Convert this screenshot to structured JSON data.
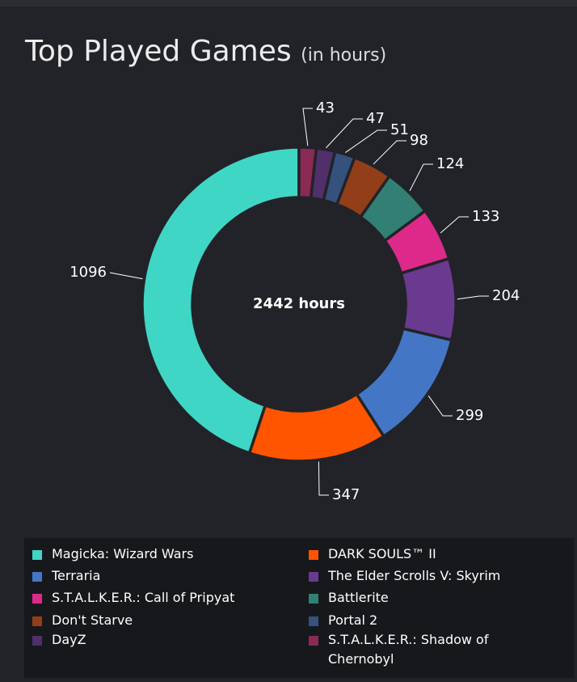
{
  "header": {
    "title": "Top Played Games",
    "subtitle": "(in hours)"
  },
  "center_label": "2442 hours",
  "colors": {
    "background": "#222328",
    "legend_background": "#17181c",
    "separator": "#222328",
    "leader_line": "#ffffff"
  },
  "chart_data": {
    "type": "pie",
    "style": "donut",
    "total_label": "2442 hours",
    "legend_position": "bottom",
    "slices": [
      {
        "label": "Magicka: Wizard Wars",
        "value": 1096,
        "color": "#40d6c5"
      },
      {
        "label": "DARK SOULS™ II",
        "value": 347,
        "color": "#ff5500"
      },
      {
        "label": "Terraria",
        "value": 299,
        "color": "#4377c6"
      },
      {
        "label": "The Elder Scrolls V: Skyrim",
        "value": 204,
        "color": "#6a3a90"
      },
      {
        "label": "S.T.A.L.K.E.R.: Call of Pripyat",
        "value": 133,
        "color": "#dd2a8a"
      },
      {
        "label": "Battlerite",
        "value": 124,
        "color": "#327f74"
      },
      {
        "label": "Don't Starve",
        "value": 98,
        "color": "#923e19"
      },
      {
        "label": "Portal 2",
        "value": 51,
        "color": "#34527b"
      },
      {
        "label": "DayZ",
        "value": 47,
        "color": "#502f6b"
      },
      {
        "label": "S.T.A.L.K.E.R.: Shadow of Chernobyl",
        "value": 43,
        "color": "#8a2a55"
      }
    ]
  }
}
